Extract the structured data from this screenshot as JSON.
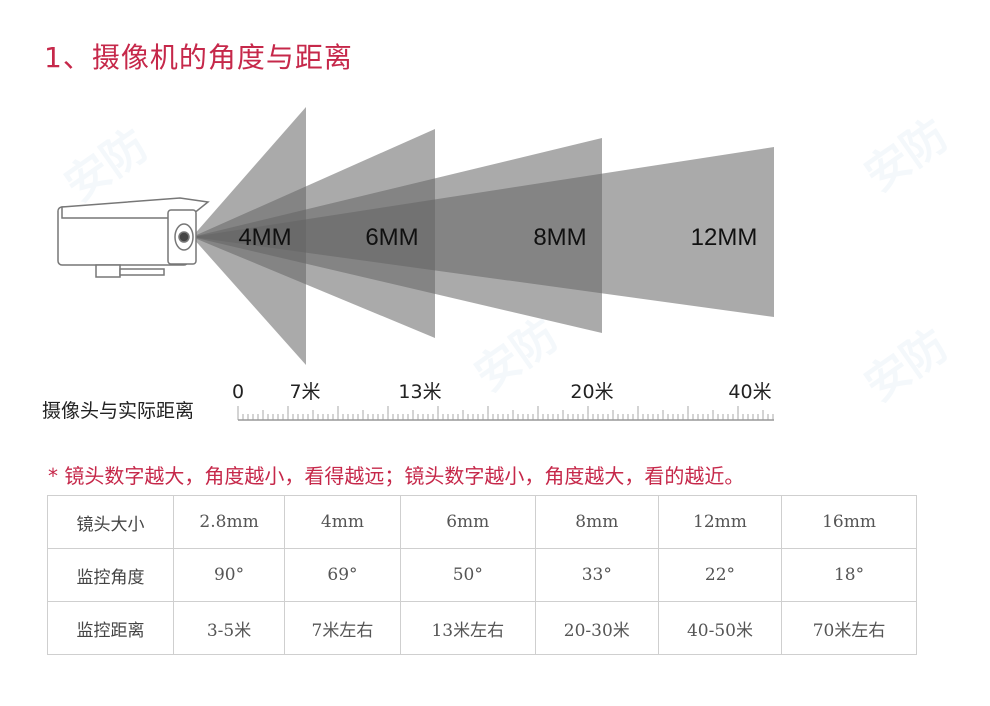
{
  "title": "1、摄像机的角度与距离",
  "beams": [
    {
      "label": "4MM"
    },
    {
      "label": "6MM"
    },
    {
      "label": "8MM"
    },
    {
      "label": "12MM"
    }
  ],
  "ruler": {
    "title": "摄像头与实际距离",
    "ticks": [
      "0",
      "7米",
      "13米",
      "20米",
      "40米"
    ]
  },
  "note": "* 镜头数字越大，角度越小，看得越远；镜头数字越小，角度越大，看的越近。",
  "table": {
    "rows": [
      {
        "header": "镜头大小",
        "cells": [
          "2.8mm",
          "4mm",
          "6mm",
          "8mm",
          "12mm",
          "16mm"
        ]
      },
      {
        "header": "监控角度",
        "cells": [
          "90°",
          "69°",
          "50°",
          "33°",
          "22°",
          "18°"
        ]
      },
      {
        "header": "监控距离",
        "cells": [
          "3-5米",
          "7米左右",
          "13米左右",
          "20-30米",
          "40-50米",
          "70米左右"
        ]
      }
    ]
  },
  "colors": {
    "accent": "#c6284a",
    "beam": "#8c8c8c"
  }
}
